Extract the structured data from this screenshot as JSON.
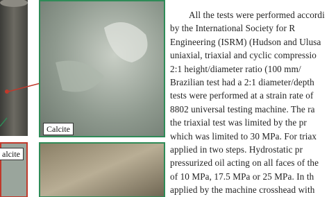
{
  "figure": {
    "labels": [
      "Calcite",
      "alcite"
    ]
  },
  "body": {
    "lines": [
      "All the tests were performed accordi",
      "by the International Society for R",
      "Engineering (ISRM) (Hudson and Ulusa",
      "uniaxial, triaxial and cyclic compressio",
      "2:1 height/diameter ratio (100 mm/",
      "Brazilian test had a 2:1 diameter/depth",
      "tests were performed at a strain rate of",
      "8802 universal testing machine. The ra",
      "the triaxial test was limited by the pr",
      "which was limited to 30 MPa. For triax",
      "applied in two steps. Hydrostatic pr",
      "pressurized oil acting on all faces of the",
      "of 10 MPa, 17.5 MPa or 25 MPa. In th",
      "applied by the machine crosshead with"
    ]
  }
}
